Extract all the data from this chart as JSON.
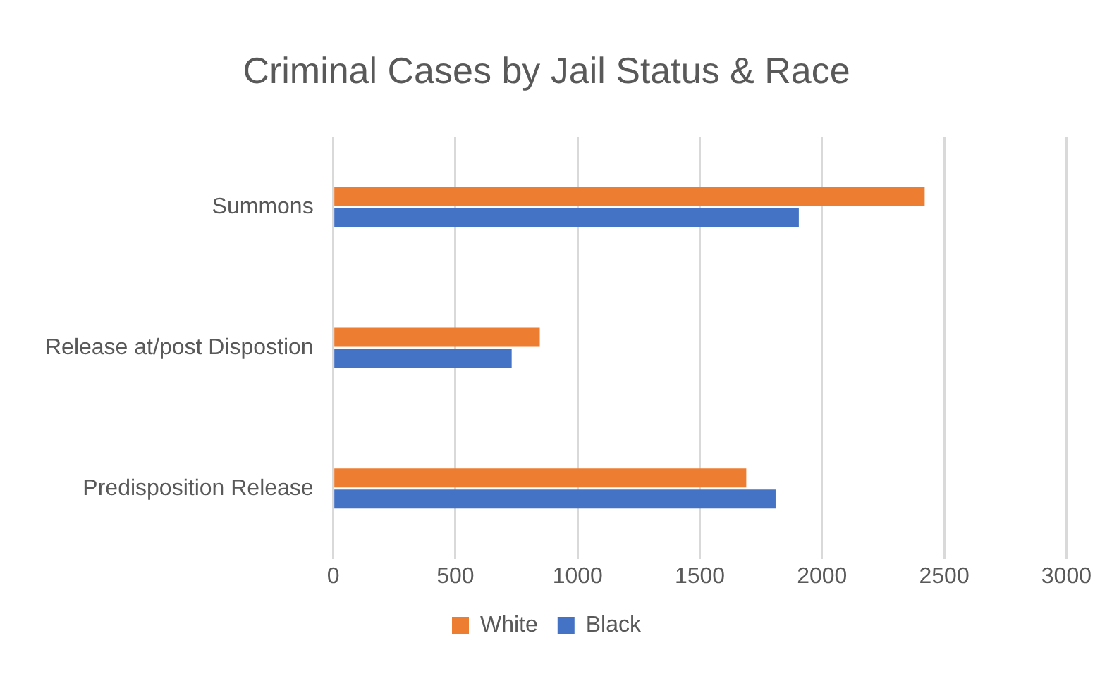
{
  "chart_data": {
    "type": "bar",
    "orientation": "horizontal",
    "title": "Criminal Cases by Jail Status & Race",
    "categories": [
      "Summons",
      "Release at/post Dispostion",
      "Predisposition Release"
    ],
    "series": [
      {
        "name": "White",
        "color": "#ed7d31",
        "values": [
          2420,
          845,
          1690
        ]
      },
      {
        "name": "Black",
        "color": "#4472c4",
        "values": [
          1905,
          730,
          1810
        ]
      }
    ],
    "xlim": [
      0,
      3000
    ],
    "xticks": [
      0,
      500,
      1000,
      1500,
      2000,
      2500,
      3000
    ],
    "grid": "x",
    "legend": "bottom"
  }
}
